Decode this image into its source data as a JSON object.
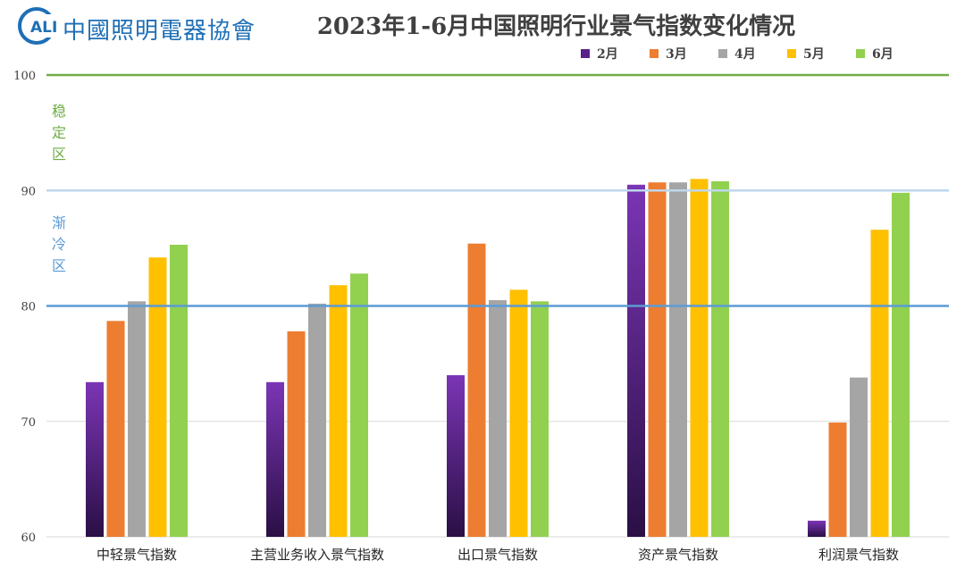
{
  "logo": {
    "mark": "CALI",
    "text": "中國照明電器協會"
  },
  "chart_data": {
    "type": "bar",
    "title": "2023年1-6月中国照明行业景气指数变化情况",
    "categories": [
      "中轻景气指数",
      "主营业务收入景气指数",
      "出口景气指数",
      "资产景气指数",
      "利润景气指数"
    ],
    "series": [
      {
        "name": "2月",
        "color": "#6a2a9e",
        "values": [
          73.4,
          73.4,
          74.0,
          90.5,
          61.4
        ]
      },
      {
        "name": "3月",
        "color": "#ed7d31",
        "values": [
          78.7,
          77.8,
          85.4,
          90.7,
          69.9
        ]
      },
      {
        "name": "4月",
        "color": "#a5a5a5",
        "values": [
          80.4,
          80.2,
          80.5,
          90.7,
          73.8
        ]
      },
      {
        "name": "5月",
        "color": "#ffc000",
        "values": [
          84.2,
          81.8,
          81.4,
          91.0,
          86.6
        ]
      },
      {
        "name": "6月",
        "color": "#92d050",
        "values": [
          85.3,
          82.8,
          80.4,
          90.8,
          89.8
        ]
      }
    ],
    "ylim": [
      60,
      100
    ],
    "yticks": [
      60,
      70,
      80,
      90,
      100
    ],
    "legend_position": "top-right",
    "reference_lines": [
      {
        "value": 100,
        "color": "#70ad47"
      },
      {
        "value": 90,
        "color": "#bdd7ee"
      },
      {
        "value": 80,
        "color": "#5b9bd5"
      }
    ],
    "zones": [
      {
        "label": "稳定区",
        "chars": [
          "稳",
          "定",
          "区"
        ],
        "color": "#70ad47"
      },
      {
        "label": "渐冷区",
        "chars": [
          "渐",
          "冷",
          "区"
        ],
        "color": "#5b9bd5"
      }
    ]
  }
}
